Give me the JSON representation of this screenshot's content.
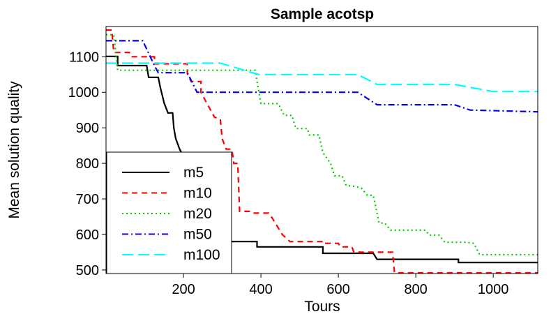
{
  "chart_data": {
    "type": "line",
    "title": "Sample acotsp",
    "xlabel": "Tours",
    "ylabel": "Mean solution quality",
    "xlim": [
      0,
      1115
    ],
    "ylim": [
      490,
      1185
    ],
    "xticks": [
      200,
      400,
      600,
      800,
      1000
    ],
    "yticks": [
      500,
      600,
      700,
      800,
      900,
      1000,
      1100
    ],
    "grid": false,
    "legend": "bottom-left",
    "series": [
      {
        "name": "m5",
        "color": "#000000",
        "dash": "solid",
        "points": [
          [
            0,
            1101
          ],
          [
            30,
            1101
          ],
          [
            30,
            1075
          ],
          [
            60,
            1075
          ],
          [
            60,
            1075
          ],
          [
            105,
            1075
          ],
          [
            110,
            1042
          ],
          [
            135,
            1042
          ],
          [
            140,
            1015
          ],
          [
            150,
            970
          ],
          [
            160,
            942
          ],
          [
            172,
            942
          ],
          [
            175,
            900
          ],
          [
            180,
            870
          ],
          [
            190,
            840
          ],
          [
            200,
            820
          ],
          [
            215,
            780
          ],
          [
            230,
            740
          ],
          [
            245,
            700
          ],
          [
            260,
            650
          ],
          [
            280,
            610
          ],
          [
            300,
            595
          ],
          [
            305,
            580
          ],
          [
            390,
            580
          ],
          [
            390,
            565
          ],
          [
            475,
            565
          ],
          [
            560,
            565
          ],
          [
            560,
            547
          ],
          [
            690,
            547
          ],
          [
            700,
            530
          ],
          [
            850,
            530
          ],
          [
            910,
            530
          ],
          [
            910,
            521
          ],
          [
            1115,
            521
          ]
        ]
      },
      {
        "name": "m10",
        "color": "#ff0000",
        "dash": "dashed",
        "points": [
          [
            0,
            1175
          ],
          [
            15,
            1175
          ],
          [
            20,
            1112
          ],
          [
            60,
            1112
          ],
          [
            65,
            1100
          ],
          [
            125,
            1100
          ],
          [
            125,
            1080
          ],
          [
            180,
            1080
          ],
          [
            185,
            1080
          ],
          [
            210,
            1080
          ],
          [
            210,
            1052
          ],
          [
            220,
            1030
          ],
          [
            245,
            1030
          ],
          [
            245,
            1000
          ],
          [
            265,
            960
          ],
          [
            280,
            930
          ],
          [
            295,
            925
          ],
          [
            300,
            870
          ],
          [
            310,
            840
          ],
          [
            325,
            840
          ],
          [
            330,
            800
          ],
          [
            340,
            800
          ],
          [
            345,
            665
          ],
          [
            375,
            665
          ],
          [
            380,
            660
          ],
          [
            420,
            660
          ],
          [
            430,
            645
          ],
          [
            455,
            600
          ],
          [
            475,
            580
          ],
          [
            560,
            580
          ],
          [
            560,
            575
          ],
          [
            600,
            575
          ],
          [
            605,
            565
          ],
          [
            635,
            565
          ],
          [
            640,
            550
          ],
          [
            740,
            550
          ],
          [
            745,
            492
          ],
          [
            1115,
            492
          ]
        ]
      },
      {
        "name": "m20",
        "color": "#00cc00",
        "dash": "dotted",
        "points": [
          [
            0,
            1162
          ],
          [
            20,
            1162
          ],
          [
            30,
            1062
          ],
          [
            100,
            1062
          ],
          [
            110,
            1062
          ],
          [
            385,
            1062
          ],
          [
            400,
            968
          ],
          [
            445,
            968
          ],
          [
            460,
            935
          ],
          [
            480,
            935
          ],
          [
            490,
            898
          ],
          [
            520,
            898
          ],
          [
            525,
            880
          ],
          [
            550,
            880
          ],
          [
            560,
            830
          ],
          [
            580,
            800
          ],
          [
            590,
            765
          ],
          [
            610,
            765
          ],
          [
            620,
            738
          ],
          [
            645,
            735
          ],
          [
            660,
            730
          ],
          [
            675,
            710
          ],
          [
            690,
            710
          ],
          [
            700,
            660
          ],
          [
            705,
            632
          ],
          [
            720,
            632
          ],
          [
            735,
            612
          ],
          [
            825,
            612
          ],
          [
            835,
            598
          ],
          [
            860,
            598
          ],
          [
            875,
            578
          ],
          [
            930,
            578
          ],
          [
            950,
            575
          ],
          [
            965,
            543
          ],
          [
            1115,
            543
          ]
        ]
      },
      {
        "name": "m50",
        "color": "#0000ee",
        "dash": "dashdot",
        "points": [
          [
            0,
            1145
          ],
          [
            95,
            1145
          ],
          [
            125,
            1075
          ],
          [
            135,
            1055
          ],
          [
            200,
            1055
          ],
          [
            210,
            1055
          ],
          [
            235,
            1000
          ],
          [
            240,
            1000
          ],
          [
            375,
            1000
          ],
          [
            650,
            1000
          ],
          [
            700,
            965
          ],
          [
            900,
            965
          ],
          [
            940,
            950
          ],
          [
            1115,
            945
          ]
        ]
      },
      {
        "name": "m100",
        "color": "#00ffff",
        "dash": "longdash",
        "points": [
          [
            0,
            1082
          ],
          [
            100,
            1082
          ],
          [
            295,
            1082
          ],
          [
            395,
            1050
          ],
          [
            650,
            1050
          ],
          [
            700,
            1022
          ],
          [
            900,
            1022
          ],
          [
            1000,
            1002
          ],
          [
            1115,
            1002
          ]
        ]
      }
    ]
  }
}
